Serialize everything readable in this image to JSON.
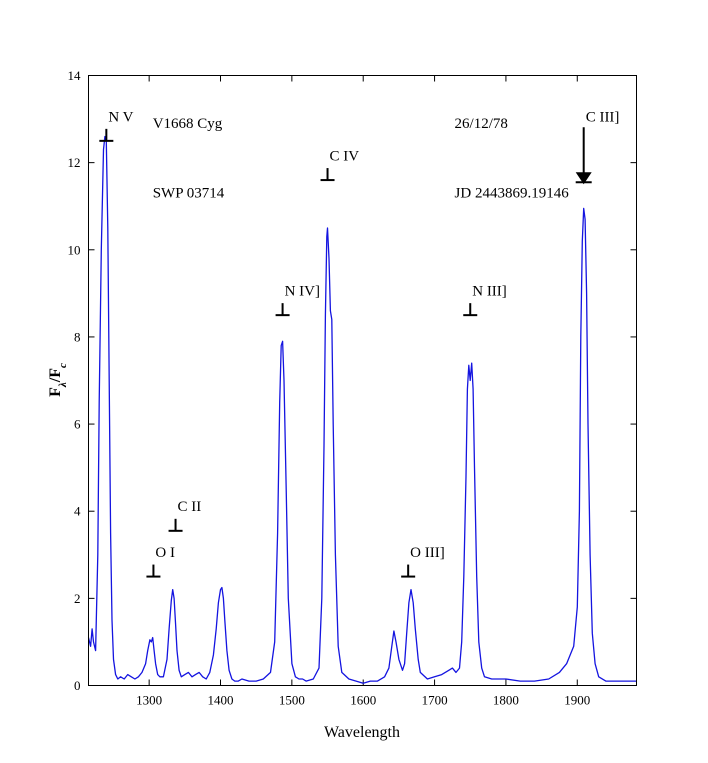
{
  "chart_data": {
    "type": "line",
    "xlabel": "Wavelength",
    "ylabel": "Fλ/Fc",
    "xlim": [
      1215,
      1983
    ],
    "ylim": [
      0,
      14
    ],
    "xticks": [
      1300,
      1400,
      1500,
      1600,
      1700,
      1800,
      1900
    ],
    "yticks": [
      0,
      2,
      4,
      6,
      8,
      10,
      12,
      14
    ],
    "line_color": "#1414e0",
    "text_annotations": [
      {
        "text": "V1668 Cyg",
        "x": 1305,
        "y": 12.8
      },
      {
        "text": "SWP 03714",
        "x": 1305,
        "y": 11.2
      },
      {
        "text": "26/12/78",
        "x": 1728,
        "y": 12.8
      },
      {
        "text": "JD 2443869.19146",
        "x": 1728,
        "y": 11.2
      }
    ],
    "line_identifications": [
      {
        "label": "N V",
        "x": 1240,
        "marker_y": 12.5,
        "label_y": 12.95
      },
      {
        "label": "O I",
        "x": 1306,
        "marker_y": 2.5,
        "label_y": 2.95
      },
      {
        "label": "C II",
        "x": 1337,
        "marker_y": 3.55,
        "label_y": 4.0
      },
      {
        "label": "N IV]",
        "x": 1487,
        "marker_y": 8.5,
        "label_y": 8.95
      },
      {
        "label": "C IV",
        "x": 1550,
        "marker_y": 11.6,
        "label_y": 12.05
      },
      {
        "label": "O III]",
        "x": 1663,
        "marker_y": 2.5,
        "label_y": 2.95
      },
      {
        "label": "N III]",
        "x": 1750,
        "marker_y": 8.5,
        "label_y": 8.95
      },
      {
        "label": "C III]",
        "x": 1909,
        "marker_y": 11.55,
        "label_y": 12.95,
        "long_arrow": true
      }
    ],
    "series": [
      {
        "x": [
          1215,
          1218,
          1220,
          1222,
          1225,
          1228,
          1230,
          1233,
          1236,
          1238,
          1240,
          1242,
          1244,
          1246,
          1248,
          1250,
          1253,
          1256,
          1260,
          1265,
          1270,
          1275,
          1280,
          1285,
          1290,
          1295,
          1298,
          1301,
          1303,
          1305,
          1307,
          1309,
          1312,
          1315,
          1320,
          1325,
          1328,
          1331,
          1333,
          1335,
          1337,
          1339,
          1342,
          1345,
          1350,
          1355,
          1360,
          1365,
          1370,
          1375,
          1380,
          1385,
          1390,
          1394,
          1397,
          1400,
          1402,
          1404,
          1406,
          1409,
          1412,
          1416,
          1420,
          1425,
          1430,
          1440,
          1450,
          1460,
          1470,
          1476,
          1480,
          1483,
          1485,
          1487,
          1489,
          1492,
          1495,
          1500,
          1505,
          1510,
          1515,
          1520,
          1530,
          1538,
          1542,
          1545,
          1547,
          1549,
          1550,
          1552,
          1554,
          1556,
          1558,
          1561,
          1565,
          1570,
          1580,
          1590,
          1600,
          1610,
          1620,
          1630,
          1636,
          1640,
          1643,
          1646,
          1650,
          1655,
          1658,
          1661,
          1664,
          1667,
          1670,
          1673,
          1677,
          1680,
          1690,
          1700,
          1710,
          1720,
          1725,
          1730,
          1735,
          1738,
          1741,
          1744,
          1746,
          1748,
          1750,
          1752,
          1754,
          1756,
          1759,
          1762,
          1766,
          1770,
          1780,
          1800,
          1820,
          1840,
          1860,
          1875,
          1885,
          1895,
          1900,
          1903,
          1905,
          1907,
          1909,
          1911,
          1913,
          1915,
          1918,
          1921,
          1925,
          1930,
          1940,
          1960,
          1983
        ],
        "y": [
          1.1,
          0.9,
          1.3,
          1.0,
          0.8,
          3.0,
          6.5,
          10.0,
          12.3,
          12.6,
          12.5,
          10.5,
          7.0,
          3.5,
          1.5,
          0.6,
          0.25,
          0.15,
          0.2,
          0.15,
          0.25,
          0.2,
          0.15,
          0.2,
          0.3,
          0.5,
          0.8,
          1.05,
          1.0,
          1.1,
          0.8,
          0.5,
          0.25,
          0.2,
          0.2,
          0.6,
          1.3,
          1.95,
          2.2,
          2.0,
          1.4,
          0.8,
          0.35,
          0.2,
          0.25,
          0.3,
          0.2,
          0.25,
          0.3,
          0.2,
          0.15,
          0.3,
          0.7,
          1.3,
          1.9,
          2.2,
          2.25,
          2.0,
          1.5,
          0.8,
          0.35,
          0.15,
          0.1,
          0.1,
          0.15,
          0.1,
          0.1,
          0.15,
          0.3,
          1.0,
          3.5,
          6.5,
          7.8,
          7.9,
          7.0,
          4.5,
          2.0,
          0.5,
          0.2,
          0.15,
          0.15,
          0.1,
          0.15,
          0.4,
          2.0,
          5.5,
          8.5,
          10.3,
          10.5,
          9.8,
          8.6,
          8.4,
          6.0,
          3.0,
          0.9,
          0.3,
          0.15,
          0.1,
          0.05,
          0.1,
          0.1,
          0.2,
          0.4,
          0.9,
          1.25,
          1.0,
          0.6,
          0.35,
          0.5,
          1.2,
          1.9,
          2.2,
          1.9,
          1.3,
          0.6,
          0.3,
          0.15,
          0.2,
          0.25,
          0.35,
          0.4,
          0.3,
          0.4,
          1.0,
          2.5,
          4.8,
          6.8,
          7.35,
          7.0,
          7.4,
          6.8,
          5.0,
          2.5,
          1.0,
          0.4,
          0.2,
          0.15,
          0.15,
          0.1,
          0.1,
          0.15,
          0.3,
          0.5,
          0.9,
          1.8,
          4.0,
          8.0,
          10.2,
          10.95,
          10.7,
          9.0,
          6.0,
          3.0,
          1.2,
          0.5,
          0.2,
          0.1,
          0.1,
          0.1
        ]
      }
    ]
  }
}
